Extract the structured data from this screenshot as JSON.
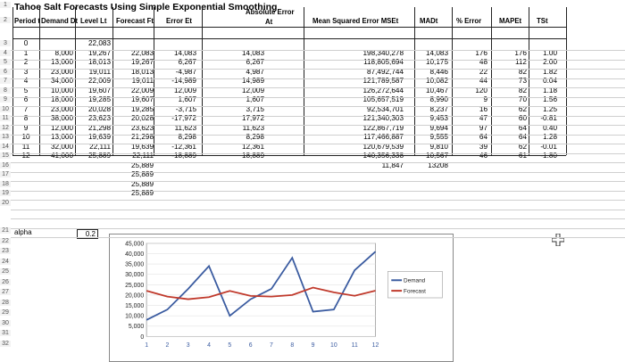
{
  "title": "Tahoe Salt Forecasts Using Simple Exponential Smoothing",
  "row_numbers": [
    "1",
    "2",
    "3",
    "4",
    "5",
    "6",
    "7",
    "8",
    "9",
    "10",
    "11",
    "12",
    "13",
    "14",
    "15",
    "16",
    "17",
    "18",
    "19",
    "20",
    "21",
    "22",
    "23",
    "24",
    "25",
    "26",
    "27",
    "28",
    "29",
    "30",
    "31",
    "32"
  ],
  "headers": {
    "period": "Period t",
    "demand": "Demand Dt",
    "level": "Level Lt",
    "forecast": "Forecast Ft",
    "error": "Error Et",
    "abs_error_top": "Absolute Error",
    "abs_error_bottom": "At",
    "mse": "Mean Squared Error MSEt",
    "mad": "MADt",
    "pct_error": "% Error",
    "mape": "MAPEt",
    "ts": "TSt"
  },
  "rows": [
    {
      "period": "0",
      "demand": "",
      "level": "22,083",
      "forecast": "",
      "error": "",
      "abs": "",
      "mse": "",
      "mad": "",
      "pct": "",
      "mape": "",
      "ts": ""
    },
    {
      "period": "1",
      "demand": "8,000",
      "level": "19,267",
      "forecast": "22,083",
      "error": "14,083",
      "abs": "14,083",
      "mse": "198,340,278",
      "mad": "14,083",
      "pct": "176",
      "mape": "176",
      "ts": "1.00"
    },
    {
      "period": "2",
      "demand": "13,000",
      "level": "18,013",
      "forecast": "19,267",
      "error": "6,267",
      "abs": "6,267",
      "mse": "118,805,694",
      "mad": "10,175",
      "pct": "48",
      "mape": "112",
      "ts": "2.00"
    },
    {
      "period": "3",
      "demand": "23,000",
      "level": "19,011",
      "forecast": "18,013",
      "error": "-4,987",
      "abs": "4,987",
      "mse": "87,492,744",
      "mad": "8,446",
      "pct": "22",
      "mape": "82",
      "ts": "1.82"
    },
    {
      "period": "4",
      "demand": "34,000",
      "level": "22,009",
      "forecast": "19,011",
      "error": "-14,989",
      "abs": "14,989",
      "mse": "121,789,587",
      "mad": "10,082",
      "pct": "44",
      "mape": "73",
      "ts": "0.04"
    },
    {
      "period": "5",
      "demand": "10,000",
      "level": "19,607",
      "forecast": "22,009",
      "error": "12,009",
      "abs": "12,009",
      "mse": "126,272,644",
      "mad": "10,467",
      "pct": "120",
      "mape": "82",
      "ts": "1.18"
    },
    {
      "period": "6",
      "demand": "18,000",
      "level": "19,285",
      "forecast": "19,607",
      "error": "1,607",
      "abs": "1,607",
      "mse": "105,657,519",
      "mad": "8,990",
      "pct": "9",
      "mape": "70",
      "ts": "1.56"
    },
    {
      "period": "7",
      "demand": "23,000",
      "level": "20,028",
      "forecast": "19,285",
      "error": "-3,715",
      "abs": "3,715",
      "mse": "92,534,701",
      "mad": "8,237",
      "pct": "16",
      "mape": "62",
      "ts": "1.25"
    },
    {
      "period": "8",
      "demand": "38,000",
      "level": "23,623",
      "forecast": "20,028",
      "error": "-17,972",
      "abs": "17,972",
      "mse": "121,340,303",
      "mad": "9,453",
      "pct": "47",
      "mape": "60",
      "ts": "-0.81"
    },
    {
      "period": "9",
      "demand": "12,000",
      "level": "21,298",
      "forecast": "23,623",
      "error": "11,623",
      "abs": "11,623",
      "mse": "122,867,719",
      "mad": "9,694",
      "pct": "97",
      "mape": "64",
      "ts": "0.40"
    },
    {
      "period": "10",
      "demand": "13,000",
      "level": "19,639",
      "forecast": "21,298",
      "error": "8,298",
      "abs": "8,298",
      "mse": "117,466,887",
      "mad": "9,555",
      "pct": "64",
      "mape": "64",
      "ts": "1.28"
    },
    {
      "period": "11",
      "demand": "32,000",
      "level": "22,111",
      "forecast": "19,639",
      "error": "-12,361",
      "abs": "12,361",
      "mse": "120,679,539",
      "mad": "9,810",
      "pct": "39",
      "mape": "62",
      "ts": "-0.01"
    },
    {
      "period": "12",
      "demand": "41,000",
      "level": "25,889",
      "forecast": "22,111",
      "error": "-18,889",
      "abs": "18,889",
      "mse": "140,356,338",
      "mad": "10,567",
      "pct": "46",
      "mape": "61",
      "ts": "-1.80"
    },
    {
      "period": "",
      "demand": "",
      "level": "",
      "forecast": "25,889",
      "error": "",
      "abs": "",
      "mse": "11,847",
      "mad": "13208",
      "pct": "",
      "mape": "",
      "ts": ""
    },
    {
      "period": "",
      "demand": "",
      "level": "",
      "forecast": "25,889",
      "error": "",
      "abs": "",
      "mse": "",
      "mad": "",
      "pct": "",
      "mape": "",
      "ts": ""
    },
    {
      "period": "",
      "demand": "",
      "level": "",
      "forecast": "25,889",
      "error": "",
      "abs": "",
      "mse": "",
      "mad": "",
      "pct": "",
      "mape": "",
      "ts": ""
    },
    {
      "period": "",
      "demand": "",
      "level": "",
      "forecast": "25,889",
      "error": "",
      "abs": "",
      "mse": "",
      "mad": "",
      "pct": "",
      "mape": "",
      "ts": ""
    }
  ],
  "alpha": {
    "label": "alpha",
    "value": "0.2"
  },
  "chart_data": {
    "type": "line",
    "x": [
      1,
      2,
      3,
      4,
      5,
      6,
      7,
      8,
      9,
      10,
      11,
      12
    ],
    "series": [
      {
        "name": "Demand",
        "values": [
          8000,
          13000,
          23000,
          34000,
          10000,
          18000,
          23000,
          38000,
          12000,
          13000,
          32000,
          41000
        ],
        "color": "#3a5ba0"
      },
      {
        "name": "Forecast",
        "values": [
          22083,
          19267,
          18013,
          19011,
          22009,
          19607,
          19285,
          20028,
          23623,
          21298,
          19639,
          22111
        ],
        "color": "#c0392b"
      }
    ],
    "yticks": [
      "45,000",
      "40,000",
      "35,000",
      "30,000",
      "25,000",
      "20,000",
      "15,000",
      "10,000",
      "5,000",
      "0"
    ],
    "xticks": [
      "1",
      "2",
      "3",
      "4",
      "5",
      "6",
      "7",
      "8",
      "9",
      "10",
      "11",
      "12"
    ],
    "ylim": [
      0,
      45000
    ],
    "legend_position": "right"
  }
}
